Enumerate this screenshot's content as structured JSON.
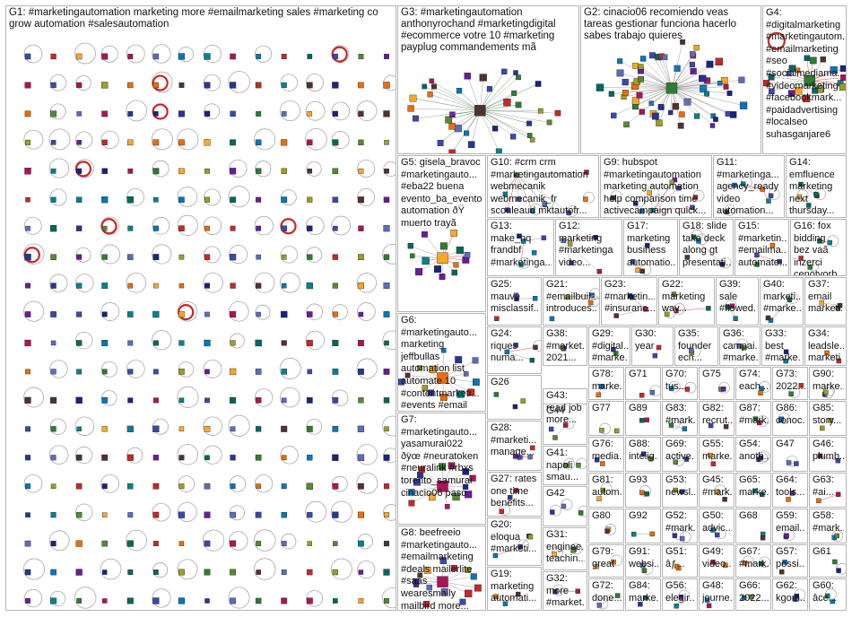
{
  "image_title": "",
  "groups": [
    {
      "id": "G1",
      "label": "G1: #marketingautomation marketing more #emailmarketing sales #marketing co grow automation #salesautomation"
    },
    {
      "id": "G3",
      "label": "G3: #marketingautomation anthonyrochand #marketingdigital #ecommerce votre 10 #marketing payplug commandements mã"
    },
    {
      "id": "G2",
      "label": "G2: cinacio06 recomiendo veas tareas gestionar funciona hacerlo sabes trabajo quieres"
    },
    {
      "id": "G4",
      "label": "G4: #digitalmarketing #marketingautom... #emailmarketing #seo #socialmediama... #videomarketing #facebookmark... #paidadvertising #localseo suhasganjare6"
    },
    {
      "id": "G5",
      "label": "G5: gisela_bravoc #marketingauto... #eba22 buena evento_ba_evento automation ðŸ muerto trayã"
    },
    {
      "id": "G10",
      "label": "G10: #crm crm #marketingautomation webmecanik webmecanik_fr scouleaud mktautofr..."
    },
    {
      "id": "G9",
      "label": "G9: hubspot #marketingautomation marketing automation help comparison time activecampaign quick..."
    },
    {
      "id": "G11",
      "label": "G11: #marketinga... agency_ready video automation..."
    },
    {
      "id": "G14",
      "label": "G14: emfluence marketing next thursday..."
    },
    {
      "id": "G13",
      "label": "G13: make_hq frandbf #marketinga..."
    },
    {
      "id": "G12",
      "label": "G12: marketing #marketinga video..."
    },
    {
      "id": "G17",
      "label": "G17: marketing business automatio..."
    },
    {
      "id": "G18",
      "label": "G18: slide take deck along gt presentati..."
    },
    {
      "id": "G15",
      "label": "G15: #marketin... #emailma... automate..."
    },
    {
      "id": "G16",
      "label": "G16: fox bidding bez vaã inzerci cenotvorb..."
    },
    {
      "id": "G6",
      "label": "G6: #marketingauto... marketing jeffbullas automation list automate 10 #contentmarketi... #events #email"
    },
    {
      "id": "G25",
      "label": "G25: mauve misclassif..."
    },
    {
      "id": "G21",
      "label": "G21: #emailbuil... introduces..."
    },
    {
      "id": "G23",
      "label": "G23: #marketin... #insuranc..."
    },
    {
      "id": "G22",
      "label": "G22: marketing way..."
    },
    {
      "id": "G39",
      "label": "G39: sale #flowed..."
    },
    {
      "id": "G40",
      "label": "G40: marketi... #marke..."
    },
    {
      "id": "G37",
      "label": "G37: email marketi..."
    },
    {
      "id": "G24",
      "label": "G24: riques numa..."
    },
    {
      "id": "G38",
      "label": "G38: #market... 2021..."
    },
    {
      "id": "G29",
      "label": "G29: #digital... #marke..."
    },
    {
      "id": "G30",
      "label": "G30: year"
    },
    {
      "id": "G35",
      "label": "G35: founder ecn..."
    },
    {
      "id": "G36",
      "label": "G36: campai... #marke..."
    },
    {
      "id": "G33",
      "label": "G33: best #marke..."
    },
    {
      "id": "G34",
      "label": "G34: leadsle... marketi"
    },
    {
      "id": "G26",
      "label": "G26"
    },
    {
      "id": "G43",
      "label": "G43: read job more..."
    },
    {
      "id": "G78",
      "label": "G78: marke..."
    },
    {
      "id": "G71",
      "label": "G71"
    },
    {
      "id": "G70",
      "label": "G70: tus..."
    },
    {
      "id": "G75",
      "label": "G75"
    },
    {
      "id": "G74",
      "label": "G74: each..."
    },
    {
      "id": "G73",
      "label": "G73: 2022..."
    },
    {
      "id": "G90",
      "label": "G90: marke..."
    },
    {
      "id": "G7",
      "label": "G7: #marketingauto... yasamurai022 ðÿœ #neuratoken #neuralink #rbxs torento_samurai cinacio06 paso"
    },
    {
      "id": "G44",
      "label": "G44"
    },
    {
      "id": "G77",
      "label": "G77"
    },
    {
      "id": "G89",
      "label": "G89"
    },
    {
      "id": "G83",
      "label": "G83: #mark..."
    },
    {
      "id": "G82",
      "label": "G82: recrut..."
    },
    {
      "id": "G87",
      "label": "G87: #mark..."
    },
    {
      "id": "G86",
      "label": "G86: conoc..."
    },
    {
      "id": "G85",
      "label": "G85: story..."
    },
    {
      "id": "G28",
      "label": "G28: #marketi... manage..."
    },
    {
      "id": "G76",
      "label": "G76: media..."
    },
    {
      "id": "G88",
      "label": "G88: intelig..."
    },
    {
      "id": "G69",
      "label": "G69: active..."
    },
    {
      "id": "G55",
      "label": "G55: marke..."
    },
    {
      "id": "G54",
      "label": "G54: anoth..."
    },
    {
      "id": "G47",
      "label": "G47"
    },
    {
      "id": "G46",
      "label": "G46: plumb..."
    },
    {
      "id": "G41",
      "label": "G41: napoli smau..."
    },
    {
      "id": "G27",
      "label": "G27: rates one time benefits..."
    },
    {
      "id": "G81",
      "label": "G81: autom..."
    },
    {
      "id": "G93",
      "label": "G93"
    },
    {
      "id": "G53",
      "label": "G53: newsl..."
    },
    {
      "id": "G45",
      "label": "G45: #mark..."
    },
    {
      "id": "G65",
      "label": "G65: marke..."
    },
    {
      "id": "G64",
      "label": "G64: tools..."
    },
    {
      "id": "G63",
      "label": "G63: #ai..."
    },
    {
      "id": "G42",
      "label": "G42"
    },
    {
      "id": "G80",
      "label": "G80"
    },
    {
      "id": "G92",
      "label": "G92"
    },
    {
      "id": "G52",
      "label": "G52: #mark..."
    },
    {
      "id": "G50",
      "label": "G50: advic..."
    },
    {
      "id": "G68",
      "label": "G68"
    },
    {
      "id": "G59",
      "label": "G59: email..."
    },
    {
      "id": "G58",
      "label": "G58: #mark..."
    },
    {
      "id": "G20",
      "label": "G20: eloqua #marketi..."
    },
    {
      "id": "G8",
      "label": "G8: beefreeio #marketingauto... #emailmarketing #deals mailerlite #saas wearesmaily mailbird more..."
    },
    {
      "id": "G31",
      "label": "G31: enginee... teachin..."
    },
    {
      "id": "G79",
      "label": "G79: great"
    },
    {
      "id": "G91",
      "label": "G91: websi..."
    },
    {
      "id": "G51",
      "label": "G51: âƒ..."
    },
    {
      "id": "G49",
      "label": "G49: video..."
    },
    {
      "id": "G67",
      "label": "G67: #mark..."
    },
    {
      "id": "G57",
      "label": "G57: possi..."
    },
    {
      "id": "G61",
      "label": "G61"
    },
    {
      "id": "G19",
      "label": "G19: marketing automati..."
    },
    {
      "id": "G32",
      "label": "G32: more #market..."
    },
    {
      "id": "G72",
      "label": "G72: done..."
    },
    {
      "id": "G84",
      "label": "G84: marke..."
    },
    {
      "id": "G56",
      "label": "G56: elegir..."
    },
    {
      "id": "G48",
      "label": "G48: journe..."
    },
    {
      "id": "G66",
      "label": "G66: 2022..."
    },
    {
      "id": "G62",
      "label": "G62: kgom..."
    },
    {
      "id": "G60",
      "label": "G60: âce..."
    }
  ]
}
